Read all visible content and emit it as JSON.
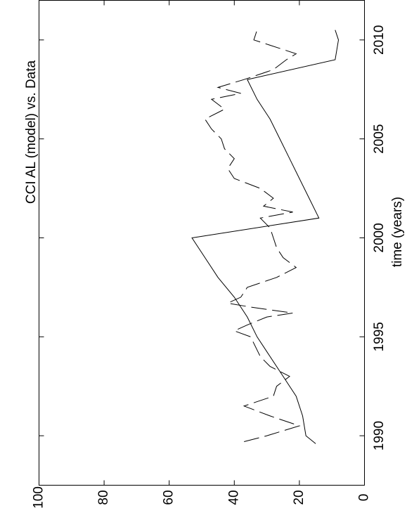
{
  "chart_data": {
    "type": "line",
    "title": "CCI AL (model) vs. Data",
    "xlabel": "time (years)",
    "xlim": [
      1987.5,
      2012
    ],
    "xticks": [
      1990,
      1995,
      2000,
      2005,
      2010
    ],
    "ylim": [
      0,
      100
    ],
    "yticks": [
      0,
      20,
      40,
      60,
      80,
      100
    ],
    "rotated": true,
    "series": [
      {
        "color": "#000000",
        "style": "solid",
        "x": [
          1989.6,
          1990,
          1991,
          1992,
          1993,
          1994,
          1995,
          1996,
          1997,
          1998,
          1999,
          2000,
          2001,
          2002,
          2003,
          2004,
          2005,
          2006,
          2007,
          2008,
          2009,
          2010,
          2010.5
        ],
        "values": [
          15,
          18,
          19,
          21,
          25,
          29,
          33,
          36,
          40,
          45,
          49,
          53,
          14,
          17,
          20,
          23,
          26,
          29,
          33,
          36,
          9,
          8,
          9
        ]
      },
      {
        "color": "#000000",
        "style": "dashed",
        "x": [
          1989.7,
          1990,
          1990.5,
          1991,
          1991.5,
          1992,
          1992.5,
          1993,
          1993.5,
          1994,
          1995,
          1995.3,
          1995.6,
          1996,
          1996.2,
          1996.5,
          1996.7,
          1997,
          1997.5,
          1998,
          1998.5,
          1999,
          1999.5,
          2000,
          2000.5,
          2001,
          2001.3,
          2001.6,
          2002,
          2002.5,
          2003,
          2003.5,
          2004,
          2004.5,
          2005,
          2005.5,
          2006,
          2006.5,
          2007,
          2007.3,
          2007.6,
          2008,
          2008.5,
          2009,
          2009.3,
          2010,
          2010.5
        ],
        "values": [
          37,
          30,
          20,
          29,
          37,
          28,
          27,
          23,
          29,
          32,
          35,
          40,
          36,
          30,
          22,
          35,
          42,
          38,
          36,
          27,
          21,
          25,
          27,
          28,
          29,
          32,
          22,
          31,
          28,
          32,
          40,
          42,
          40,
          43,
          44,
          47,
          49,
          43,
          47,
          38,
          45,
          37,
          28,
          24,
          21,
          34,
          33
        ]
      }
    ]
  }
}
